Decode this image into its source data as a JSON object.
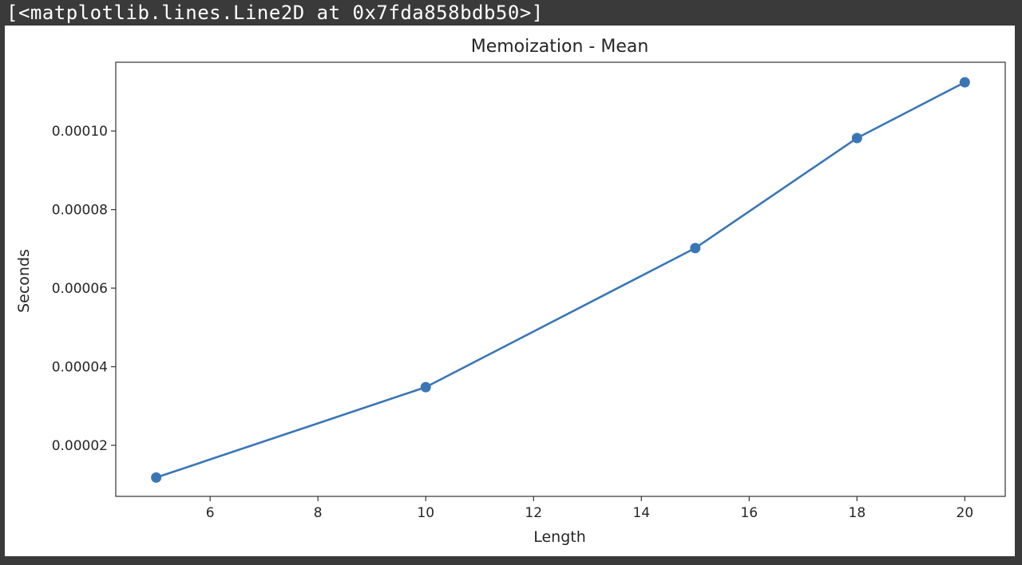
{
  "output": {
    "repr": "[<matplotlib.lines.Line2D at 0x7fda858bdb50>]"
  },
  "chart_data": {
    "type": "line",
    "title": "Memoization -  Mean",
    "xlabel": "Length",
    "ylabel": "Seconds",
    "xlim": [
      4.25,
      20.75
    ],
    "ylim": [
      7e-06,
      0.0001175
    ],
    "xticks": [
      6,
      8,
      10,
      12,
      14,
      16,
      18,
      20
    ],
    "xtick_labels": [
      "6",
      "8",
      "10",
      "12",
      "14",
      "16",
      "18",
      "20"
    ],
    "yticks": [
      2e-05,
      4e-05,
      6e-05,
      8e-05,
      0.0001
    ],
    "ytick_labels": [
      "0.00002",
      "0.00004",
      "0.00006",
      "0.00008",
      "0.00010"
    ],
    "grid": false,
    "series": [
      {
        "x": [
          5,
          10,
          15,
          18,
          20
        ],
        "y": [
          1.18e-05,
          3.48e-05,
          7.02e-05,
          9.82e-05,
          0.0001124
        ],
        "color": "#3a76b5",
        "marker": "o"
      }
    ]
  }
}
